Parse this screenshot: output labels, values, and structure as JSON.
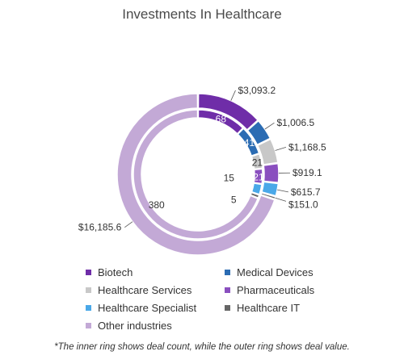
{
  "chart_data": {
    "type": "donut",
    "title": "Investments In Healthcare",
    "footnote": "*The inner ring shows deal count, while the outer ring shows deal value.",
    "categories": [
      "Biotech",
      "Medical Devices",
      "Healthcare Services",
      "Pharmaceuticals",
      "Healthcare Specialist",
      "Healthcare IT",
      "Other industries"
    ],
    "colors": [
      "#6f2da8",
      "#2b6cb3",
      "#c8c8c8",
      "#8a4fbf",
      "#4aa8e8",
      "#666666",
      "#c3a9d6"
    ],
    "series": [
      {
        "ring": "outer",
        "values": [
          3093.2,
          1006.5,
          1168.5,
          919.1,
          615.7,
          151.0,
          16185.6
        ],
        "labels": [
          "$3,093.2",
          "$1,006.5",
          "$1,168.5",
          "$919.1",
          "$615.7",
          "$151.0",
          "$16,185.6"
        ]
      },
      {
        "ring": "inner",
        "values": [
          68,
          41,
          21,
          21,
          15,
          5,
          380
        ],
        "labels": [
          "68",
          "41",
          "21",
          "21",
          "15",
          "5",
          "380"
        ]
      }
    ],
    "legend_position": "bottom"
  }
}
